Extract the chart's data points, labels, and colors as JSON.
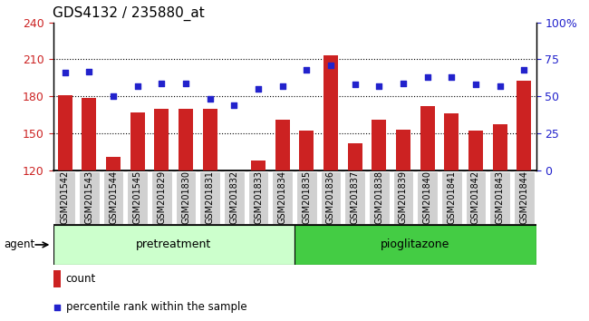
{
  "title": "GDS4132 / 235880_at",
  "categories": [
    "GSM201542",
    "GSM201543",
    "GSM201544",
    "GSM201545",
    "GSM201829",
    "GSM201830",
    "GSM201831",
    "GSM201832",
    "GSM201833",
    "GSM201834",
    "GSM201835",
    "GSM201836",
    "GSM201837",
    "GSM201838",
    "GSM201839",
    "GSM201840",
    "GSM201841",
    "GSM201842",
    "GSM201843",
    "GSM201844"
  ],
  "bar_values": [
    181,
    179,
    131,
    167,
    170,
    170,
    170,
    120,
    128,
    161,
    152,
    213,
    142,
    161,
    153,
    172,
    166,
    152,
    157,
    193
  ],
  "percentile_values": [
    66,
    67,
    50,
    57,
    59,
    59,
    48,
    44,
    55,
    57,
    68,
    71,
    58,
    57,
    59,
    63,
    63,
    58,
    57,
    68
  ],
  "bar_color": "#cc2222",
  "dot_color": "#2222cc",
  "ylim_left": [
    120,
    240
  ],
  "ylim_right": [
    0,
    100
  ],
  "yticks_left": [
    120,
    150,
    180,
    210,
    240
  ],
  "yticks_right": [
    0,
    25,
    50,
    75,
    100
  ],
  "grid_dotted_values": [
    150,
    180,
    210
  ],
  "pretreatment_label": "pretreatment",
  "pioglitazone_label": "pioglitazone",
  "agent_label": "agent",
  "legend_count": "count",
  "legend_percentile": "percentile rank within the sample",
  "bg_color_pretreatment": "#ccffcc",
  "bg_color_pioglitazone": "#44cc44",
  "bar_width": 0.6,
  "title_fontsize": 11,
  "tick_label_fontsize": 7,
  "axis_label_fontsize": 9,
  "n_pretreatment": 10,
  "n_pioglitazone": 10
}
